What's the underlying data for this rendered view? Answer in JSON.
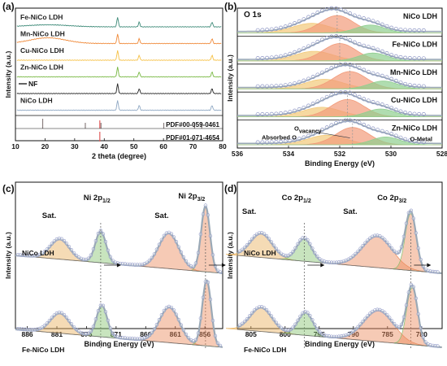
{
  "chart_data": [
    {
      "type": "line",
      "panel_label": "(a)",
      "xlabel": "2 theta (degree)",
      "ylabel": "Intensity (a.u.)",
      "xlim": [
        10,
        80
      ],
      "xticks": [
        10,
        20,
        30,
        40,
        50,
        60,
        70,
        80
      ],
      "series": [
        {
          "name": "Fe-NiCo LDH",
          "color": "#3d8a78"
        },
        {
          "name": "Mn-NiCo LDH",
          "color": "#f08a3a"
        },
        {
          "name": "Cu-NiCo LDH",
          "color": "#f6c146"
        },
        {
          "name": "Zn-NiCo LDH",
          "color": "#78b842"
        },
        {
          "name": "NF",
          "color": "#222222"
        },
        {
          "name": "NiCo LDH",
          "color": "#8fa8c4"
        }
      ],
      "reference_patterns": [
        {
          "name": "PDF#00-059-0461",
          "color": "#8a7f7f",
          "lines": [
            19.2,
            33.6,
            38.9,
            60.1,
            70.5,
            72.9
          ]
        },
        {
          "name": "PDF#01-071-4654",
          "color": "#e05a5a",
          "lines": [
            38.5
          ]
        }
      ],
      "nf_peaks": [
        44.5,
        51.8,
        76.4
      ]
    },
    {
      "type": "line",
      "panel_label": "(b)",
      "title": "O 1s",
      "xlabel": "Binding Energy (eV)",
      "ylabel": "Intensity (a.u.)",
      "xlim": [
        536,
        528
      ],
      "xticks": [
        536,
        534,
        532,
        530,
        528
      ],
      "series": [
        {
          "name": "NiCo LDH"
        },
        {
          "name": "Fe-NiCo LDH"
        },
        {
          "name": "Mn-NiCo LDH"
        },
        {
          "name": "Cu-NiCo LDH"
        },
        {
          "name": "Zn-NiCo LDH"
        }
      ],
      "components": [
        {
          "name": "Absorbed O",
          "center": 533.0,
          "color": "#f2c979"
        },
        {
          "name": "O<sub>vacancy</sub>",
          "label_main": "O",
          "label_sub": "vacancy",
          "center": 531.6,
          "color": "#f29b7a"
        },
        {
          "name": "O-Metal",
          "center": 530.3,
          "color": "#8fcf8f"
        }
      ],
      "vacancy_peak_positions": [
        532.1,
        532.0,
        531.6,
        531.7,
        531.5
      ]
    },
    {
      "type": "line",
      "panel_label": "(c)",
      "xlabel": "Binding Energy (eV)",
      "ylabel": "Intensity (a.u.)",
      "xlim": [
        888,
        853
      ],
      "xticks": [
        886,
        881,
        876,
        871,
        866,
        861,
        856
      ],
      "series": [
        {
          "name": "NiCo LDH",
          "peaks": {
            "Sat. 1": 880.5,
            "Ni 2p1/2": 873.6,
            "Sat. 2": 862.1,
            "Ni 2p3/2": 855.9
          }
        },
        {
          "name": "Fe-NiCo LDH",
          "peaks": {
            "Sat. 1": 880.5,
            "Ni 2p1/2": 873.4,
            "Sat. 2": 862.0,
            "Ni 2p3/2": 855.7
          }
        }
      ],
      "annotations": {
        "sat": "Sat.",
        "ni_main": "Ni 2p",
        "ni_half_sub": "1/2",
        "ni_three_half_sub": "3/2"
      }
    },
    {
      "type": "line",
      "panel_label": "(d)",
      "xlabel": "Binding Energy (eV)",
      "ylabel": "Intensity (a.u.)",
      "xlim": [
        807,
        777
      ],
      "xticks": [
        805,
        800,
        795,
        790,
        785,
        780
      ],
      "series": [
        {
          "name": "NiCo LDH",
          "peaks": {
            "Sat. 1": 803.5,
            "Co 2p1/2": 797.2,
            "Sat. 2": 786.5,
            "Co 2p3/2": 781.6
          }
        },
        {
          "name": "Fe-NiCo LDH",
          "peaks": {
            "Sat. 1": 803.5,
            "Co 2p1/2": 797.0,
            "Sat. 2": 786.3,
            "Co 2p3/2": 781.4
          }
        }
      ],
      "annotations": {
        "sat": "Sat.",
        "co_main": "Co 2p",
        "co_half_sub": "1/2",
        "co_three_half_sub": "3/2"
      }
    }
  ],
  "colors": {
    "fit_envelope": "#9aa9b6",
    "marker": "#8d96c4",
    "vacancy_line": "#9a9a9a",
    "xps_orange": "#ec8a5b",
    "xps_green": "#86c36f",
    "xps_sat": "#e8b05a",
    "background": "#6b6b6b"
  }
}
